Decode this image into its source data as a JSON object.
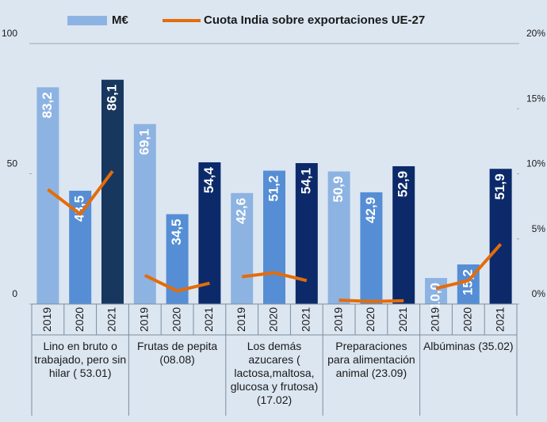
{
  "chart_data": {
    "type": "bar",
    "categories": [
      "2019",
      "2020",
      "2021",
      "2019",
      "2020",
      "2021",
      "2019",
      "2020",
      "2021",
      "2019",
      "2020",
      "2021",
      "2019",
      "2020",
      "2021"
    ],
    "groups": [
      "Lino en bruto o trabajado, pero sin hilar ( 53.01)",
      "Frutas de pepita (08.08)",
      "Los demás azucares ( lactosa,maltosa, glucosa y frutosa) (17.02)",
      "Preparaciones para alimentación animal  (23.09)",
      "Albúminas (35.02)"
    ],
    "series": [
      {
        "name": "M€",
        "type": "bar",
        "color": "#8db3e2",
        "colors": [
          "#8db3e2",
          "#558ed5",
          "#17375e",
          "#8db3e2",
          "#558ed5",
          "#0c2a6a",
          "#8db3e2",
          "#558ed5",
          "#0c2a6a",
          "#8db3e2",
          "#558ed5",
          "#0c2a6a",
          "#8db3e2",
          "#558ed5",
          "#0c2a6a"
        ],
        "values": [
          83.2,
          43.5,
          86.1,
          69.1,
          34.5,
          54.4,
          42.6,
          51.2,
          54.1,
          50.9,
          42.9,
          52.9,
          10.0,
          15.2,
          51.9
        ],
        "value_labels": [
          "83,2",
          "43,5",
          "86,1",
          "69,1",
          "34,5",
          "54,4",
          "42,6",
          "51,2",
          "54,1",
          "50,9",
          "42,9",
          "52,9",
          "10,0",
          "15,2",
          "51,9"
        ]
      },
      {
        "name": "Cuota India sobre exportaciones UE-27",
        "type": "line",
        "axis": "y2",
        "color": "#e46c0a",
        "values": [
          8.8,
          6.9,
          10.2,
          2.2,
          1.0,
          1.6,
          2.1,
          2.4,
          1.8,
          0.3,
          0.2,
          0.25,
          1.2,
          1.8,
          4.6
        ]
      }
    ],
    "ylim": [
      0,
      100
    ],
    "yticks": [
      0,
      50,
      100
    ],
    "y2lim": [
      0,
      20
    ],
    "y2ticks": [
      {
        "value": 0,
        "label": "0%"
      },
      {
        "value": 5,
        "label": "5%"
      },
      {
        "value": 10,
        "label": "10%"
      },
      {
        "value": 15,
        "label": "15%"
      },
      {
        "value": 20,
        "label": "20%"
      }
    ],
    "legend": "top"
  }
}
